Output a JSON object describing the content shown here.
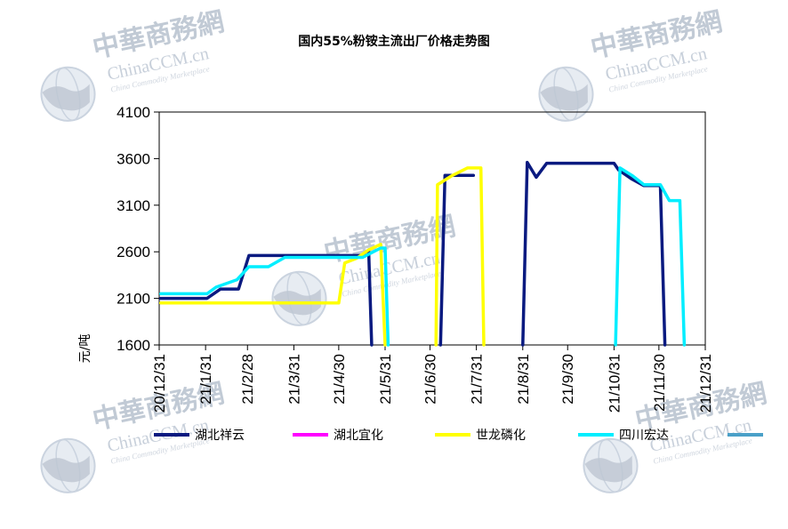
{
  "chart_data": {
    "type": "line",
    "title": "国内55%粉铵主流出厂价格走势图",
    "ylabel": "元/吨",
    "ylim": [
      1600,
      4100
    ],
    "yticks": [
      1600,
      2100,
      2600,
      3100,
      3600,
      4100
    ],
    "xlim": [
      "2020-12-31",
      "2021-12-31"
    ],
    "xticks": [
      "20/12/31",
      "21/1/31",
      "21/2/28",
      "21/3/31",
      "21/4/30",
      "21/5/31",
      "21/6/30",
      "21/7/31",
      "21/8/31",
      "21/9/30",
      "21/10/31",
      "21/11/30",
      "21/12/31"
    ],
    "xtick_dates": [
      "2020-12-31",
      "2021-01-31",
      "2021-02-28",
      "2021-03-31",
      "2021-04-30",
      "2021-05-31",
      "2021-06-30",
      "2021-07-31",
      "2021-08-31",
      "2021-09-30",
      "2021-10-31",
      "2021-11-30",
      "2021-12-31"
    ],
    "legend_position": "bottom",
    "grid": false,
    "series": [
      {
        "name": "湖北祥云",
        "color": "#0a1a80",
        "segments": [
          [
            [
              "2021-01-01",
              2100
            ],
            [
              "2021-02-01",
              2100
            ],
            [
              "2021-02-10",
              2200
            ],
            [
              "2021-02-22",
              2200
            ],
            [
              "2021-03-01",
              2560
            ],
            [
              "2021-03-31",
              2560
            ],
            [
              "2021-05-15",
              2560
            ],
            [
              "2021-05-20",
              2620
            ],
            [
              "2021-05-22",
              1600
            ]
          ],
          [
            [
              "2021-07-07",
              1600
            ],
            [
              "2021-07-10",
              3420
            ],
            [
              "2021-07-29",
              3420
            ]
          ],
          [
            [
              "2021-08-31",
              1600
            ],
            [
              "2021-09-03",
              3560
            ],
            [
              "2021-09-09",
              3400
            ],
            [
              "2021-09-16",
              3550
            ],
            [
              "2021-10-31",
              3550
            ],
            [
              "2021-11-03",
              3480
            ],
            [
              "2021-11-12",
              3380
            ],
            [
              "2021-11-20",
              3310
            ],
            [
              "2021-12-01",
              3310
            ],
            [
              "2021-12-04",
              1600
            ]
          ]
        ]
      },
      {
        "name": "湖北宜化",
        "color": "#ff00ff",
        "segments": []
      },
      {
        "name": "世龙磷化",
        "color": "#ffff00",
        "segments": [
          [
            [
              "2021-01-01",
              2050
            ],
            [
              "2021-04-30",
              2050
            ],
            [
              "2021-05-04",
              2480
            ],
            [
              "2021-05-12",
              2530
            ],
            [
              "2021-05-20",
              2620
            ],
            [
              "2021-05-28",
              2680
            ],
            [
              "2021-05-31",
              1600
            ]
          ],
          [
            [
              "2021-07-04",
              1600
            ],
            [
              "2021-07-05",
              3320
            ],
            [
              "2021-07-15",
              3420
            ],
            [
              "2021-07-25",
              3500
            ],
            [
              "2021-08-03",
              3500
            ],
            [
              "2021-08-05",
              1600
            ]
          ]
        ]
      },
      {
        "name": "四川宏达",
        "color": "#00eeff",
        "segments": [
          [
            [
              "2021-01-01",
              2150
            ],
            [
              "2021-02-01",
              2150
            ],
            [
              "2021-02-07",
              2220
            ],
            [
              "2021-02-21",
              2300
            ],
            [
              "2021-03-01",
              2440
            ],
            [
              "2021-03-14",
              2440
            ],
            [
              "2021-03-25",
              2540
            ],
            [
              "2021-05-16",
              2540
            ],
            [
              "2021-05-28",
              2640
            ],
            [
              "2021-05-31",
              2640
            ],
            [
              "2021-06-02",
              1600
            ]
          ],
          [
            [
              "2021-11-01",
              1600
            ],
            [
              "2021-11-04",
              3500
            ],
            [
              "2021-11-12",
              3420
            ],
            [
              "2021-11-20",
              3320
            ],
            [
              "2021-12-01",
              3320
            ],
            [
              "2021-12-07",
              3150
            ],
            [
              "2021-12-14",
              3150
            ],
            [
              "2021-12-17",
              1600
            ]
          ]
        ]
      },
      {
        "name": "",
        "color": "#4aa0c8",
        "segments": []
      }
    ]
  },
  "watermark": {
    "cn": "中華商務網",
    "en": "ChinaCCM.cn",
    "sub": "China Commodity Marketplace"
  }
}
